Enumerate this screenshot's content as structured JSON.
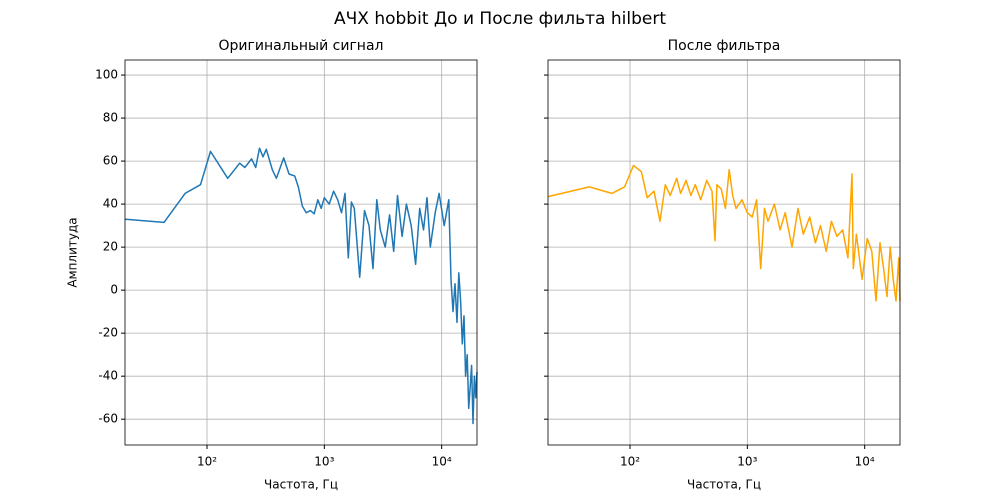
{
  "title": "АЧХ hobbit До и После фильта hilbert",
  "chart_data": [
    {
      "type": "line",
      "title": "Оригинальный сигнал",
      "xlabel": "Частота, Гц",
      "ylabel": "Амплитуда",
      "log_x": true,
      "grid": true,
      "show_ytick_labels": true,
      "xlim": [
        20,
        20000
      ],
      "ylim": [
        -72,
        107
      ],
      "xticks": [
        {
          "value": 100,
          "label": "10²"
        },
        {
          "value": 1000,
          "label": "10³"
        },
        {
          "value": 10000,
          "label": "10⁴"
        }
      ],
      "yticks": [
        -60,
        -40,
        -20,
        0,
        20,
        40,
        60,
        80,
        100
      ],
      "x": [
        20,
        43,
        65,
        88,
        107,
        150,
        190,
        210,
        240,
        260,
        280,
        300,
        320,
        360,
        390,
        450,
        500,
        560,
        600,
        650,
        700,
        760,
        820,
        880,
        940,
        1000,
        1100,
        1200,
        1300,
        1400,
        1500,
        1600,
        1700,
        1800,
        2000,
        2200,
        2400,
        2600,
        2800,
        3000,
        3300,
        3600,
        3900,
        4200,
        4600,
        5000,
        5500,
        6000,
        6500,
        7000,
        7500,
        8000,
        8800,
        9500,
        10500,
        11500,
        12000,
        12500,
        13000,
        13500,
        14000,
        14500,
        15000,
        15500,
        16000,
        16500,
        17000,
        17500,
        18000,
        18500,
        19000,
        19500,
        20000
      ],
      "series": [
        {
          "color": "#1f77b4",
          "values": [
            33,
            31.5,
            45,
            49,
            64.5,
            52,
            59,
            57,
            61,
            57,
            66,
            62,
            65.5,
            56,
            52,
            61.5,
            54,
            53,
            48,
            39,
            36,
            37,
            35.5,
            42,
            38,
            43,
            40,
            46,
            42,
            36,
            45,
            15,
            41,
            38,
            6,
            37,
            30,
            10,
            42,
            28,
            20,
            35,
            18,
            44,
            25,
            40,
            30,
            12,
            38,
            28,
            43,
            20,
            36,
            45,
            30,
            42,
            5,
            -10,
            3,
            -15,
            8,
            -5,
            -25,
            -12,
            -40,
            -30,
            -55,
            -45,
            -35,
            -62,
            -40,
            -50,
            -38
          ]
        }
      ]
    },
    {
      "type": "line",
      "title": "После фильтра",
      "xlabel": "Частота, Гц",
      "log_x": true,
      "grid": true,
      "show_ytick_labels": false,
      "xlim": [
        20,
        20000
      ],
      "ylim": [
        -72,
        107
      ],
      "xticks": [
        {
          "value": 100,
          "label": "10²"
        },
        {
          "value": 1000,
          "label": "10³"
        },
        {
          "value": 10000,
          "label": "10⁴"
        }
      ],
      "yticks": [
        -60,
        -40,
        -20,
        0,
        20,
        40,
        60,
        80,
        100
      ],
      "x": [
        20,
        45,
        70,
        90,
        107,
        125,
        140,
        160,
        180,
        200,
        220,
        250,
        270,
        300,
        330,
        360,
        400,
        450,
        500,
        530,
        550,
        600,
        650,
        700,
        750,
        800,
        900,
        1000,
        1100,
        1200,
        1300,
        1400,
        1500,
        1700,
        1900,
        2100,
        2400,
        2700,
        3000,
        3400,
        3800,
        4200,
        4700,
        5200,
        5800,
        6500,
        7200,
        7800,
        8000,
        8500,
        9500,
        10500,
        11500,
        12500,
        13500,
        14500,
        15500,
        16500,
        17500,
        18500,
        19500,
        20000
      ],
      "series": [
        {
          "color": "#ffa500",
          "values": [
            43.5,
            48,
            45,
            48,
            58,
            55,
            43,
            46,
            32,
            49,
            44,
            52,
            45,
            51,
            44,
            49,
            42,
            51,
            46,
            23,
            49,
            47,
            38,
            56,
            44,
            38,
            42,
            36,
            34,
            42,
            10,
            38,
            32,
            40,
            28,
            36,
            20,
            38,
            26,
            34,
            22,
            30,
            18,
            32,
            25,
            28,
            15,
            54,
            10,
            26,
            5,
            24,
            18,
            -5,
            22,
            10,
            -3,
            20,
            5,
            -5,
            15,
            -5
          ]
        }
      ]
    }
  ]
}
